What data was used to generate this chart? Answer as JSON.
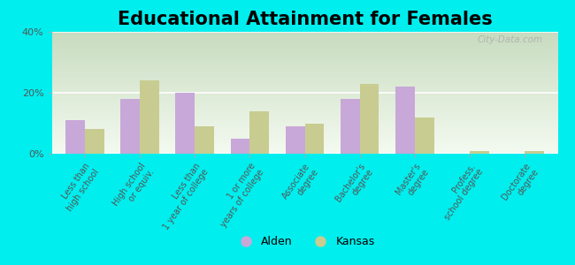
{
  "title": "Educational Attainment for Females",
  "categories": [
    "Less than\nhigh school",
    "High school\nor equiv.",
    "Less than\n1 year of college",
    "1 or more\nyears of college",
    "Associate\ndegree",
    "Bachelor's\ndegree",
    "Master's\ndegree",
    "Profess.\nschool degree",
    "Doctorate\ndegree"
  ],
  "alden_values": [
    11,
    18,
    20,
    5,
    9,
    18,
    22,
    0,
    0
  ],
  "kansas_values": [
    8,
    24,
    9,
    14,
    10,
    23,
    12,
    1,
    1
  ],
  "alden_color": "#c8a8d8",
  "kansas_color": "#c8cc90",
  "background_color": "#00eeee",
  "grad_top": "#c8dcc0",
  "grad_bottom": "#f4faf0",
  "ylim": [
    0,
    40
  ],
  "yticks": [
    0,
    20,
    40
  ],
  "ytick_labels": [
    "0%",
    "20%",
    "40%"
  ],
  "legend_labels": [
    "Alden",
    "Kansas"
  ],
  "title_fontsize": 15,
  "tick_fontsize": 7,
  "bar_width": 0.35,
  "watermark": "City-Data.com"
}
